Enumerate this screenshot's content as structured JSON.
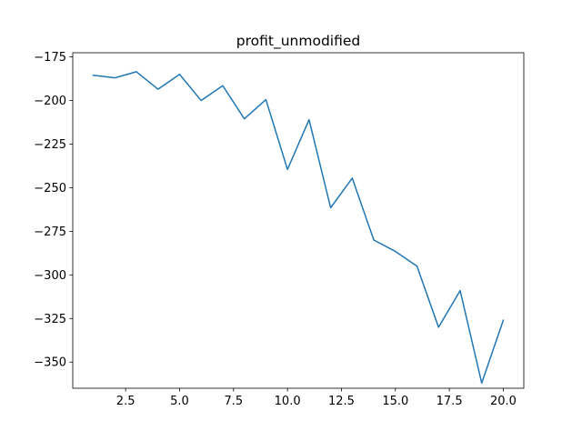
{
  "chart_data": {
    "type": "line",
    "title": "profit_unmodified",
    "xlabel": "",
    "ylabel": "",
    "xlim": [
      0.05,
      20.95
    ],
    "ylim": [
      -365.0,
      -172.6
    ],
    "xticks": [
      2.5,
      5.0,
      7.5,
      10.0,
      12.5,
      15.0,
      17.5,
      20.0
    ],
    "xtick_labels": [
      "2.5",
      "5.0",
      "7.5",
      "10.0",
      "12.5",
      "15.0",
      "17.5",
      "20.0"
    ],
    "yticks": [
      -175,
      -200,
      -225,
      -250,
      -275,
      -300,
      -325,
      -350
    ],
    "ytick_labels": [
      "−175",
      "−200",
      "−225",
      "−250",
      "−275",
      "−300",
      "−325",
      "−350"
    ],
    "grid": false,
    "series": [
      {
        "color": "#1f77b4",
        "x": [
          1,
          2,
          3,
          4,
          5,
          6,
          7,
          8,
          9,
          10,
          11,
          12,
          13,
          14,
          15,
          16,
          17,
          18,
          19,
          20
        ],
        "y": [
          -185.5,
          -187.0,
          -183.5,
          -193.5,
          -185.0,
          -200.0,
          -191.5,
          -210.5,
          -199.5,
          -239.5,
          -211.0,
          -261.5,
          -244.5,
          -280.0,
          -286.5,
          -295.0,
          -330.0,
          -309.0,
          -362.0,
          -326.0
        ]
      }
    ]
  }
}
